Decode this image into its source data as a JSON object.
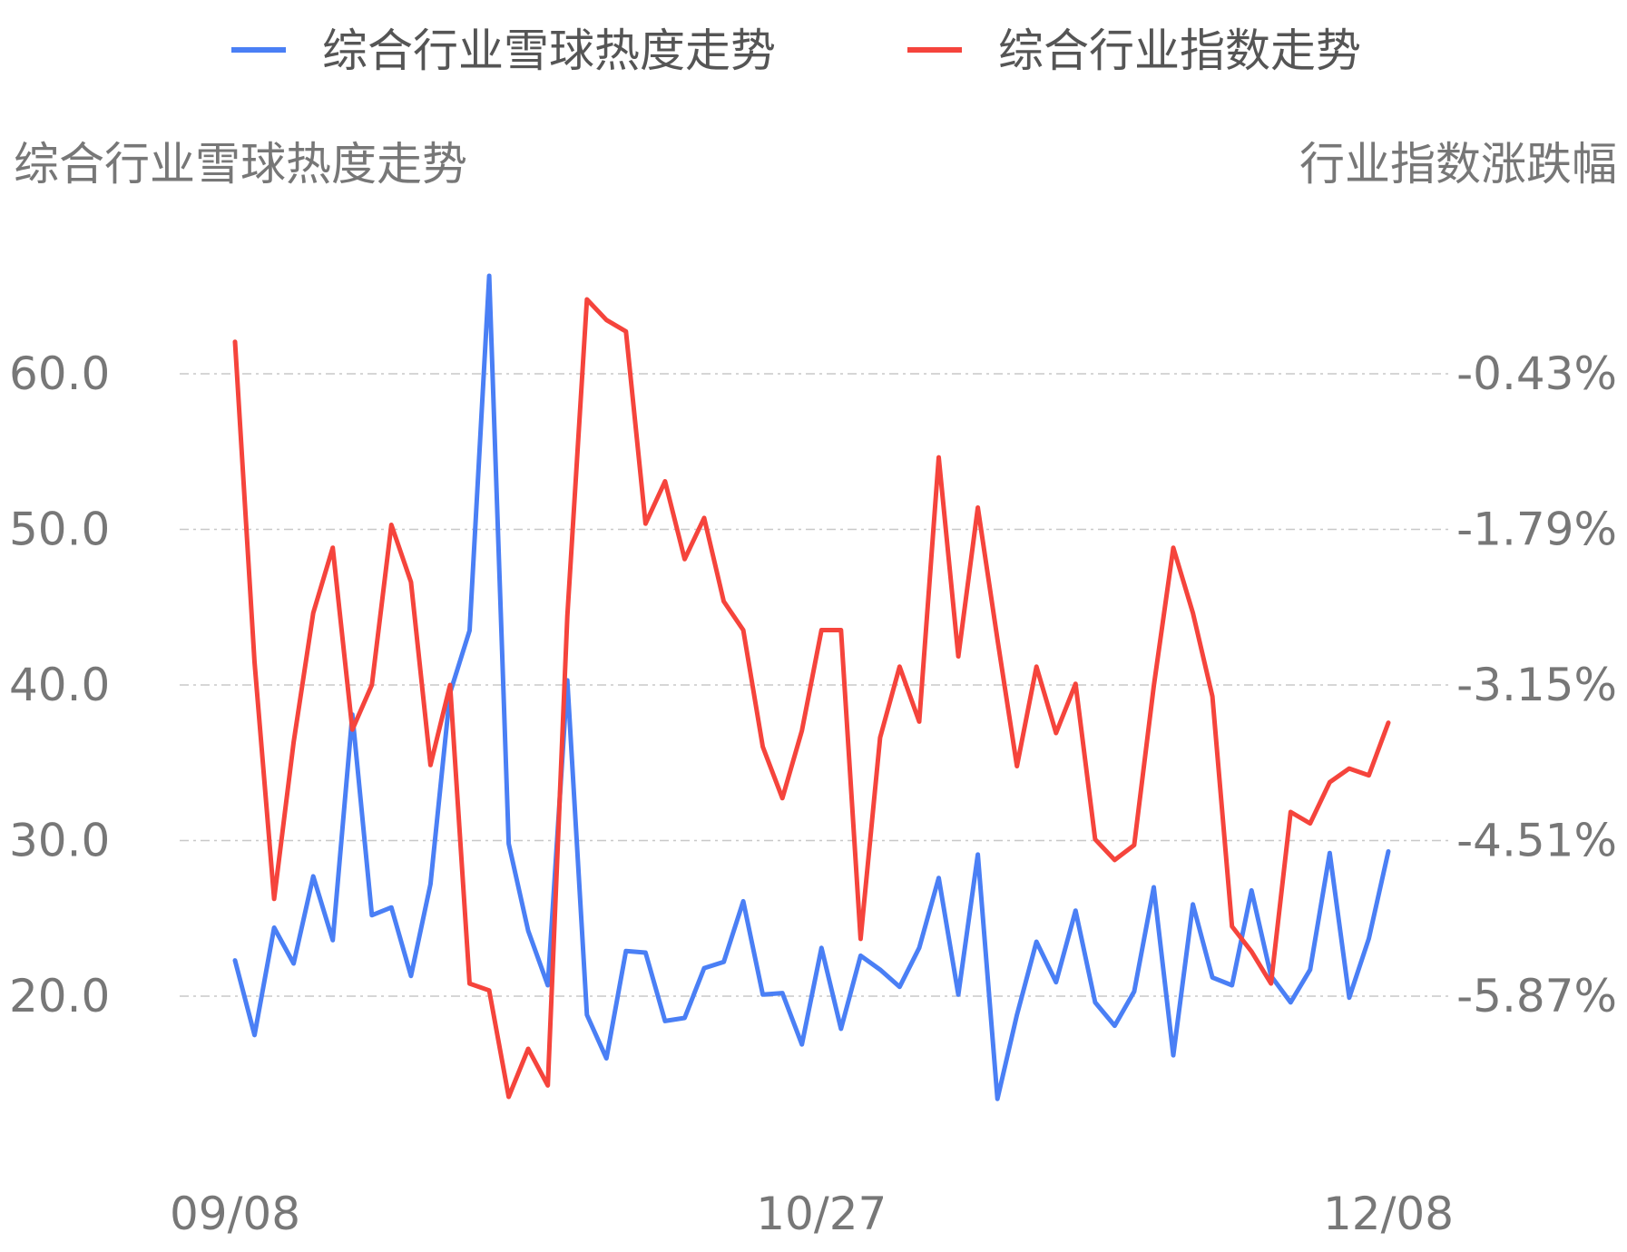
{
  "chart_data": {
    "type": "line",
    "legend": [
      {
        "name": "综合行业雪球热度走势",
        "color": "#4a7ff5"
      },
      {
        "name": "综合行业指数走势",
        "color": "#f5443c"
      }
    ],
    "left_axis_title": "综合行业雪球热度走势",
    "right_axis_title": "行业指数涨跌幅",
    "left_ticks": [
      "60.0",
      "50.0",
      "40.0",
      "30.0",
      "20.0"
    ],
    "right_ticks": [
      "-0.43%",
      "-1.79%",
      "-3.15%",
      "-4.51%",
      "-5.87%"
    ],
    "x_ticks": [
      "09/08",
      "10/27",
      "12/08"
    ],
    "left_ylim": [
      20,
      60
    ],
    "right_ylim": [
      -5.87,
      -0.43
    ],
    "grid": "horizontal dashed",
    "legend_position": "top",
    "series": [
      {
        "name": "综合行业雪球热度走势",
        "axis": "left",
        "color": "#4a7ff5",
        "values": [
          22.3,
          17.5,
          24.4,
          22.1,
          27.7,
          23.6,
          38.1,
          25.2,
          25.7,
          21.3,
          27.2,
          39.5,
          43.5,
          66.3,
          29.8,
          24.2,
          20.7,
          40.3,
          18.8,
          16.0,
          22.9,
          22.8,
          18.4,
          18.6,
          21.8,
          22.2,
          26.1,
          20.1,
          20.2,
          16.9,
          23.1,
          17.9,
          22.6,
          21.7,
          20.6,
          23.1,
          27.6,
          20.1,
          29.1,
          13.4,
          18.8,
          23.5,
          20.9,
          25.5,
          19.6,
          18.1,
          20.3,
          27.0,
          16.2,
          25.9,
          21.2,
          20.7,
          26.8,
          21.3,
          19.6,
          21.7,
          29.2,
          19.9,
          23.7,
          29.3
        ]
      },
      {
        "name": "综合行业指数走势",
        "axis": "right",
        "values": [
          -0.15,
          -2.95,
          -5.02,
          -3.65,
          -2.52,
          -1.95,
          -3.54,
          -3.15,
          -1.75,
          -2.25,
          -3.85,
          -3.15,
          -5.76,
          -5.82,
          -6.75,
          -6.33,
          -6.65,
          -2.55,
          0.22,
          0.04,
          -0.06,
          -1.74,
          -1.37,
          -2.05,
          -1.69,
          -2.42,
          -2.67,
          -3.69,
          -4.14,
          -3.55,
          -2.67,
          -2.67,
          -5.37,
          -3.61,
          -2.99,
          -3.47,
          -1.16,
          -2.9,
          -1.6,
          -2.75,
          -3.86,
          -2.99,
          -3.57,
          -3.14,
          -4.5,
          -4.68,
          -4.55,
          -3.16,
          -1.95,
          -2.52,
          -3.25,
          -5.26,
          -5.48,
          -5.76,
          -4.26,
          -4.36,
          -4.0,
          -3.88,
          -3.94,
          -3.48
        ],
        "color": "#f5443c"
      }
    ]
  }
}
